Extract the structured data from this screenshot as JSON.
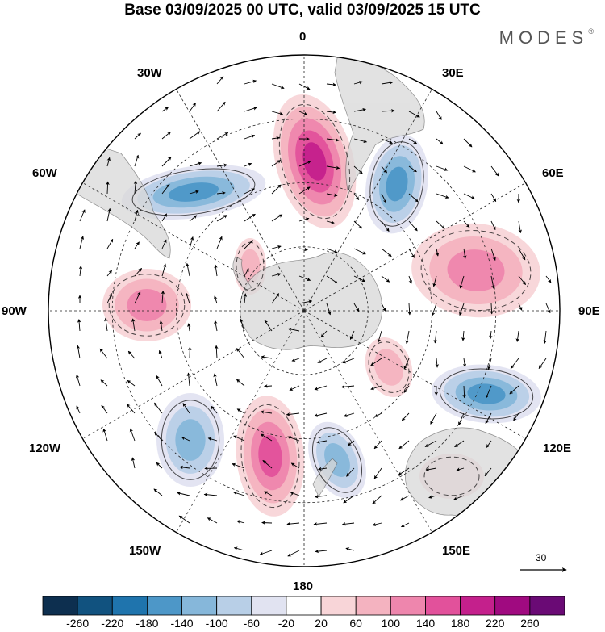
{
  "title": "Base 03/09/2025 00 UTC, valid 03/09/2025 15 UTC",
  "brand": {
    "name": "MODES",
    "mark": "®"
  },
  "longitude_labels": {
    "lon_0": "0",
    "lon_30e": "30E",
    "lon_60e": "60E",
    "lon_90e": "90E",
    "lon_120e": "120E",
    "lon_150e": "150E",
    "lon_180": "180",
    "lon_150w": "150W",
    "lon_120w": "120W",
    "lon_90w": "90W",
    "lon_60w": "60W",
    "lon_30w": "30W"
  },
  "reference_vector": {
    "label": "30"
  },
  "colorbar": {
    "colors": [
      "#0d2f4f",
      "#11527f",
      "#1f74ad",
      "#4d97c8",
      "#86b7da",
      "#b8cfe7",
      "#e1e3f1",
      "#ffffff",
      "#f8d5d8",
      "#f4b3c0",
      "#ee86ad",
      "#e2519b",
      "#c4208c",
      "#a00a80",
      "#6a0a75"
    ],
    "labels": [
      "-260",
      "-220",
      "-180",
      "-140",
      "-100",
      "-60",
      "-20",
      "20",
      "60",
      "100",
      "140",
      "180",
      "220",
      "260"
    ]
  },
  "colors": {
    "land": "#d8d8d8",
    "ocean": "#ffffff",
    "grid": "#222222"
  },
  "anomaly_centers": [
    {
      "name": "high-south-atlantic",
      "sign": 1,
      "strength": 0.75
    },
    {
      "name": "low-southwest-atlantic",
      "sign": -1,
      "strength": 0.6
    },
    {
      "name": "low-south-africa",
      "sign": -1,
      "strength": 0.6
    },
    {
      "name": "high-indian-ocean",
      "sign": 1,
      "strength": 0.45
    },
    {
      "name": "low-southeast-indian",
      "sign": -1,
      "strength": 0.7
    },
    {
      "name": "high-southeast-pacific",
      "sign": 1,
      "strength": 0.5
    },
    {
      "name": "low-south-pacific-west",
      "sign": -1,
      "strength": 0.55
    },
    {
      "name": "high-south-pacific",
      "sign": 1,
      "strength": 0.7
    },
    {
      "name": "low-ross-sea",
      "sign": -1,
      "strength": 0.45
    },
    {
      "name": "high-tasman",
      "sign": 1,
      "strength": 0.25
    },
    {
      "name": "high-east-antarctic",
      "sign": 1,
      "strength": 0.3
    },
    {
      "name": "high-west-pacific",
      "sign": 1,
      "strength": 0.2
    }
  ]
}
